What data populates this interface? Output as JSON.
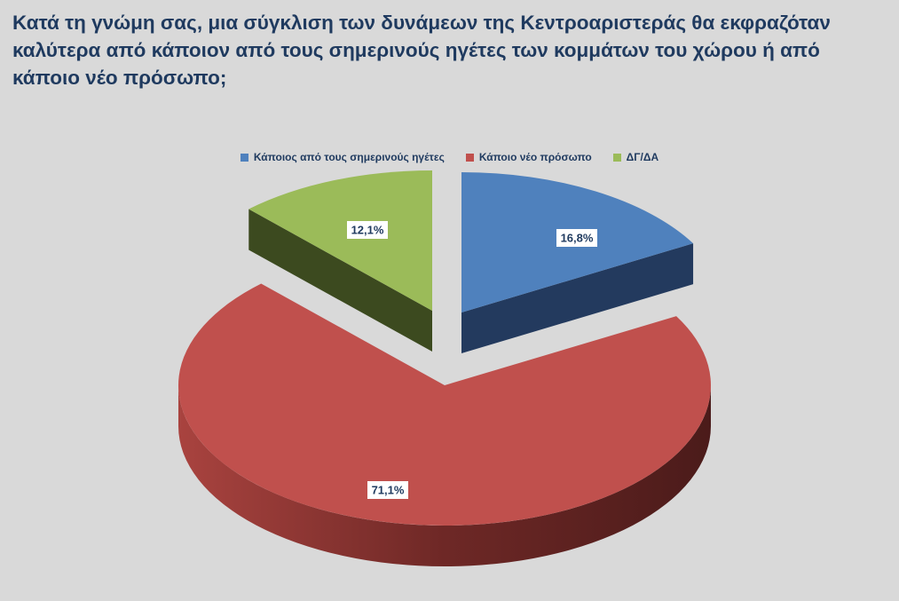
{
  "title": "Κατά τη γνώμη σας, μια σύγκλιση των δυνάμεων της Κεντροαριστεράς θα εκφραζόταν καλύτερα από κάποιον από τους σημερινούς ηγέτες των κομμάτων του χώρου ή από κάποιο νέο πρόσωπο;",
  "chart_data": {
    "type": "pie",
    "title": "Κατά τη γνώμη σας, μια σύγκλιση των δυνάμεων της Κεντροαριστεράς θα εκφραζόταν καλύτερα από κάποιον από τους σημερινούς ηγέτες των κομμάτων του χώρου ή από κάποιο νέο πρόσωπο;",
    "legend_position": "top",
    "slices": [
      {
        "name": "Κάποιος από τους σημερινούς ηγέτες",
        "value": 16.8,
        "label": "16,8%",
        "color": "#4f81bd"
      },
      {
        "name": "Κάποιο νέο πρόσωπο",
        "value": 71.1,
        "label": "71,1%",
        "color": "#c0504d"
      },
      {
        "name": "ΔΓ/ΔΑ",
        "value": 12.1,
        "label": "12,1%",
        "color": "#9bbb59"
      }
    ]
  }
}
